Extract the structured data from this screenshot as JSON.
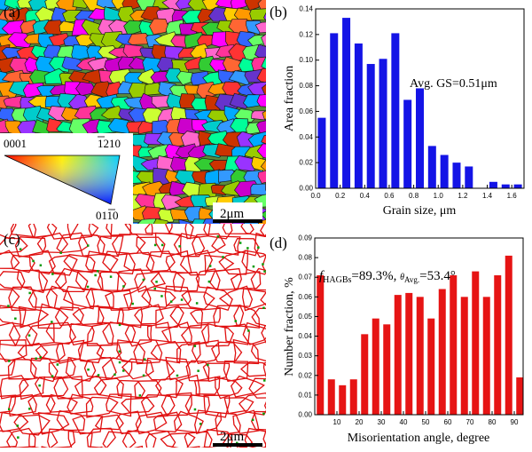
{
  "panels": {
    "a": {
      "label": "(a)",
      "scale_bar": "2μm",
      "ipf_key": {
        "corner_0001": "0001",
        "corner_1210": "1210",
        "corner_0110": "0110"
      }
    },
    "b": {
      "label": "(b)"
    },
    "c": {
      "label": "(c)",
      "scale_bar": "2μm"
    },
    "d": {
      "label": "(d)"
    }
  },
  "colors": {
    "bar_b": "#1414e6",
    "bar_d": "#e61414",
    "hagb": "#e01010",
    "lagb": "#0a9a0a"
  },
  "chart_data": [
    {
      "type": "bar",
      "panel": "b",
      "xlabel": "Grain size, μm",
      "ylabel": "Area fraction",
      "annotation": "Avg. GS=0.51μm",
      "xlim": [
        0,
        1.7
      ],
      "ylim": [
        0,
        0.14
      ],
      "xticks": [
        "0.0",
        "0.2",
        "0.4",
        "0.6",
        "0.8",
        "1.0",
        "1.2",
        "1.4",
        "1.6"
      ],
      "xtick_values": [
        0,
        0.2,
        0.4,
        0.6,
        0.8,
        1.0,
        1.2,
        1.4,
        1.6
      ],
      "yticks": [
        "0.00",
        "0.02",
        "0.04",
        "0.06",
        "0.08",
        "0.10",
        "0.12",
        "0.14"
      ],
      "ytick_values": [
        0,
        0.02,
        0.04,
        0.06,
        0.08,
        0.1,
        0.12,
        0.14
      ],
      "bin_width": 0.065,
      "x": [
        0.05,
        0.15,
        0.25,
        0.35,
        0.45,
        0.55,
        0.65,
        0.75,
        0.85,
        0.95,
        1.05,
        1.15,
        1.25,
        1.35,
        1.45,
        1.55,
        1.65
      ],
      "values": [
        0.055,
        0.121,
        0.133,
        0.113,
        0.097,
        0.101,
        0.121,
        0.069,
        0.078,
        0.033,
        0.026,
        0.02,
        0.017,
        0.0,
        0.005,
        0.003,
        0.003
      ]
    },
    {
      "type": "bar",
      "panel": "d",
      "xlabel": "Misorientation angle, degree",
      "ylabel": "Number fraction, %",
      "annotation_f": "f",
      "annotation_f_sub": "HAGBs",
      "annotation_f_val": "=89.3%, ",
      "annotation_theta": "θ",
      "annotation_theta_sub": "Avg.",
      "annotation_theta_val": "=53.4°",
      "xlim": [
        0,
        94
      ],
      "ylim": [
        0,
        0.09
      ],
      "xticks": [
        "10",
        "20",
        "30",
        "40",
        "50",
        "60",
        "70",
        "80",
        "90"
      ],
      "xtick_values": [
        10,
        20,
        30,
        40,
        50,
        60,
        70,
        80,
        90
      ],
      "yticks": [
        "0.00",
        "0.01",
        "0.02",
        "0.03",
        "0.04",
        "0.05",
        "0.06",
        "0.07",
        "0.08",
        "0.09"
      ],
      "ytick_values": [
        0,
        0.01,
        0.02,
        0.03,
        0.04,
        0.05,
        0.06,
        0.07,
        0.08,
        0.09
      ],
      "bin_width": 3.2,
      "x": [
        2.5,
        7.5,
        12.5,
        17.5,
        22.5,
        27.5,
        32.5,
        37.5,
        42.5,
        47.5,
        52.5,
        57.5,
        62.5,
        67.5,
        72.5,
        77.5,
        82.5,
        87.5,
        92.5
      ],
      "values": [
        0.071,
        0.018,
        0.015,
        0.018,
        0.041,
        0.049,
        0.046,
        0.061,
        0.062,
        0.06,
        0.049,
        0.064,
        0.071,
        0.06,
        0.073,
        0.06,
        0.071,
        0.081,
        0.019
      ]
    }
  ]
}
